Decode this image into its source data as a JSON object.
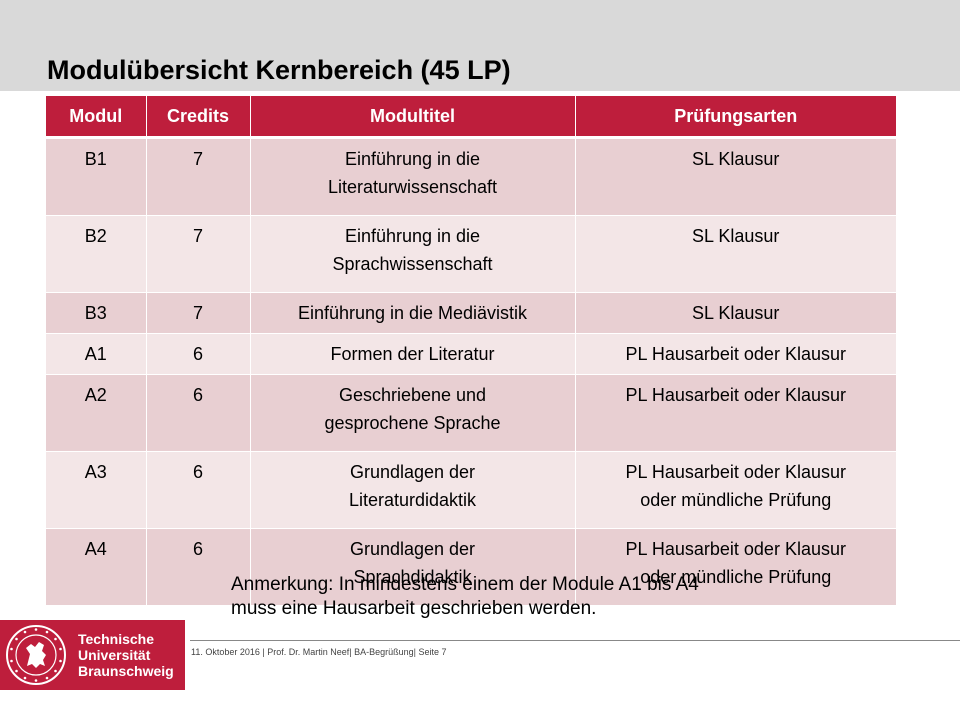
{
  "title": "Modulübersicht Kernbereich (45 LP)",
  "table": {
    "headers": [
      "Modul",
      "Credits",
      "Modultitel",
      "Prüfungsarten"
    ],
    "rows": [
      {
        "modul": "B1",
        "credits": "7",
        "titel": [
          "Einführung in die",
          "Literaturwissenschaft"
        ],
        "pruefung": [
          "SL Klausur"
        ]
      },
      {
        "modul": "B2",
        "credits": "7",
        "titel": [
          "Einführung in die",
          "Sprachwissenschaft"
        ],
        "pruefung": [
          "SL Klausur"
        ]
      },
      {
        "modul": "B3",
        "credits": "7",
        "titel": [
          "Einführung in die Mediävistik"
        ],
        "pruefung": [
          "SL Klausur"
        ]
      },
      {
        "modul": "A1",
        "credits": "6",
        "titel": [
          "Formen der Literatur"
        ],
        "pruefung": [
          "PL Hausarbeit oder Klausur"
        ]
      },
      {
        "modul": "A2",
        "credits": "6",
        "titel": [
          "Geschriebene und",
          "gesprochene Sprache"
        ],
        "pruefung": [
          "PL Hausarbeit oder Klausur"
        ]
      },
      {
        "modul": "A3",
        "credits": "6",
        "titel": [
          "Grundlagen der",
          "Literaturdidaktik"
        ],
        "pruefung": [
          "PL Hausarbeit oder Klausur",
          "oder mündliche Prüfung"
        ]
      },
      {
        "modul": "A4",
        "credits": "6",
        "titel": [
          "Grundlagen der",
          "Sprachdidaktik"
        ],
        "pruefung": [
          "PL Hausarbeit oder Klausur",
          "oder mündliche Prüfung"
        ]
      }
    ]
  },
  "note": [
    "Anmerkung: In mindestens einem der Module A1 bis A4",
    "muss eine Hausarbeit geschrieben werden."
  ],
  "footer": "11. Oktober 2016 | Prof. Dr. Martin Neef| BA-Begrüßung| Seite 7",
  "logo": {
    "lines": [
      "Technische",
      "Universität",
      "Braunschweig"
    ],
    "seal_icon": "university-seal-icon",
    "brand_color": "#be1e3c"
  },
  "colors": {
    "header_bg": "#be1e3c",
    "row_odd": "#e8cfd2",
    "row_even": "#f3e6e7",
    "top_band": "#d9d9d9"
  }
}
